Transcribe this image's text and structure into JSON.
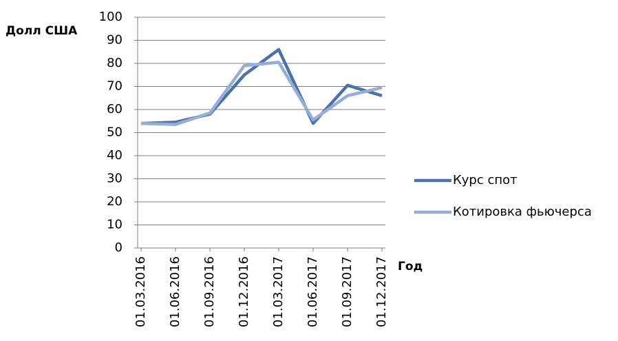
{
  "chart_data": {
    "type": "line",
    "y_label": "Долл США",
    "x_label": "Год",
    "categories": [
      "01.03.2016",
      "01.06.2016",
      "01.09.2016",
      "01.12.2016",
      "01.03.2017",
      "01.06.2017",
      "01.09.2017",
      "01.12.2017"
    ],
    "series": [
      {
        "name": "Курс спот",
        "color": "#4a71a8",
        "values": [
          54,
          54.5,
          58,
          75,
          86,
          54,
          70.5,
          66
        ]
      },
      {
        "name": "Котировка фьючерса",
        "color": "#94aed8",
        "values": [
          54,
          53.5,
          58.5,
          79,
          80.5,
          55.5,
          66,
          69.5
        ]
      }
    ],
    "ylim": [
      0,
      100
    ],
    "yticks": [
      0,
      10,
      20,
      30,
      40,
      50,
      60,
      70,
      80,
      90,
      100
    ],
    "grid": true,
    "legend": "right"
  }
}
